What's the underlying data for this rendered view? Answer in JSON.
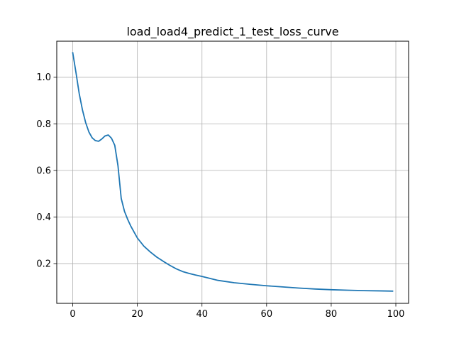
{
  "chart_data": {
    "type": "line",
    "title": "load_load4_predict_1_test_loss_curve",
    "xlabel": "",
    "ylabel": "",
    "xlim": [
      -4.95,
      103.95
    ],
    "ylim": [
      0.0295,
      1.1545
    ],
    "xticks": [
      0,
      20,
      40,
      60,
      80,
      100
    ],
    "yticks": [
      0.2,
      0.4,
      0.6,
      0.8,
      1.0
    ],
    "xtick_labels": [
      "0",
      "20",
      "40",
      "60",
      "80",
      "100"
    ],
    "ytick_labels": [
      "0.2",
      "0.4",
      "0.6",
      "0.8",
      "1.0"
    ],
    "grid": true,
    "legend": "none",
    "colors": {
      "series": "#1f77b4",
      "grid": "#b0b0b0",
      "axes": "#000000"
    },
    "series": [
      {
        "x": [
          0,
          1,
          2,
          3,
          4,
          5,
          6,
          7,
          8,
          9,
          10,
          11,
          12,
          13,
          14,
          15,
          16,
          17,
          18,
          19,
          20,
          22,
          24,
          26,
          28,
          30,
          32,
          34,
          36,
          38,
          40,
          45,
          50,
          55,
          60,
          65,
          70,
          75,
          80,
          85,
          90,
          95,
          99
        ],
        "y": [
          1.105,
          1.02,
          0.93,
          0.86,
          0.805,
          0.765,
          0.74,
          0.728,
          0.725,
          0.735,
          0.748,
          0.752,
          0.738,
          0.708,
          0.62,
          0.48,
          0.425,
          0.39,
          0.36,
          0.335,
          0.31,
          0.275,
          0.25,
          0.228,
          0.21,
          0.193,
          0.178,
          0.166,
          0.158,
          0.151,
          0.145,
          0.128,
          0.118,
          0.111,
          0.105,
          0.1,
          0.095,
          0.091,
          0.088,
          0.086,
          0.084,
          0.083,
          0.082
        ]
      }
    ]
  }
}
